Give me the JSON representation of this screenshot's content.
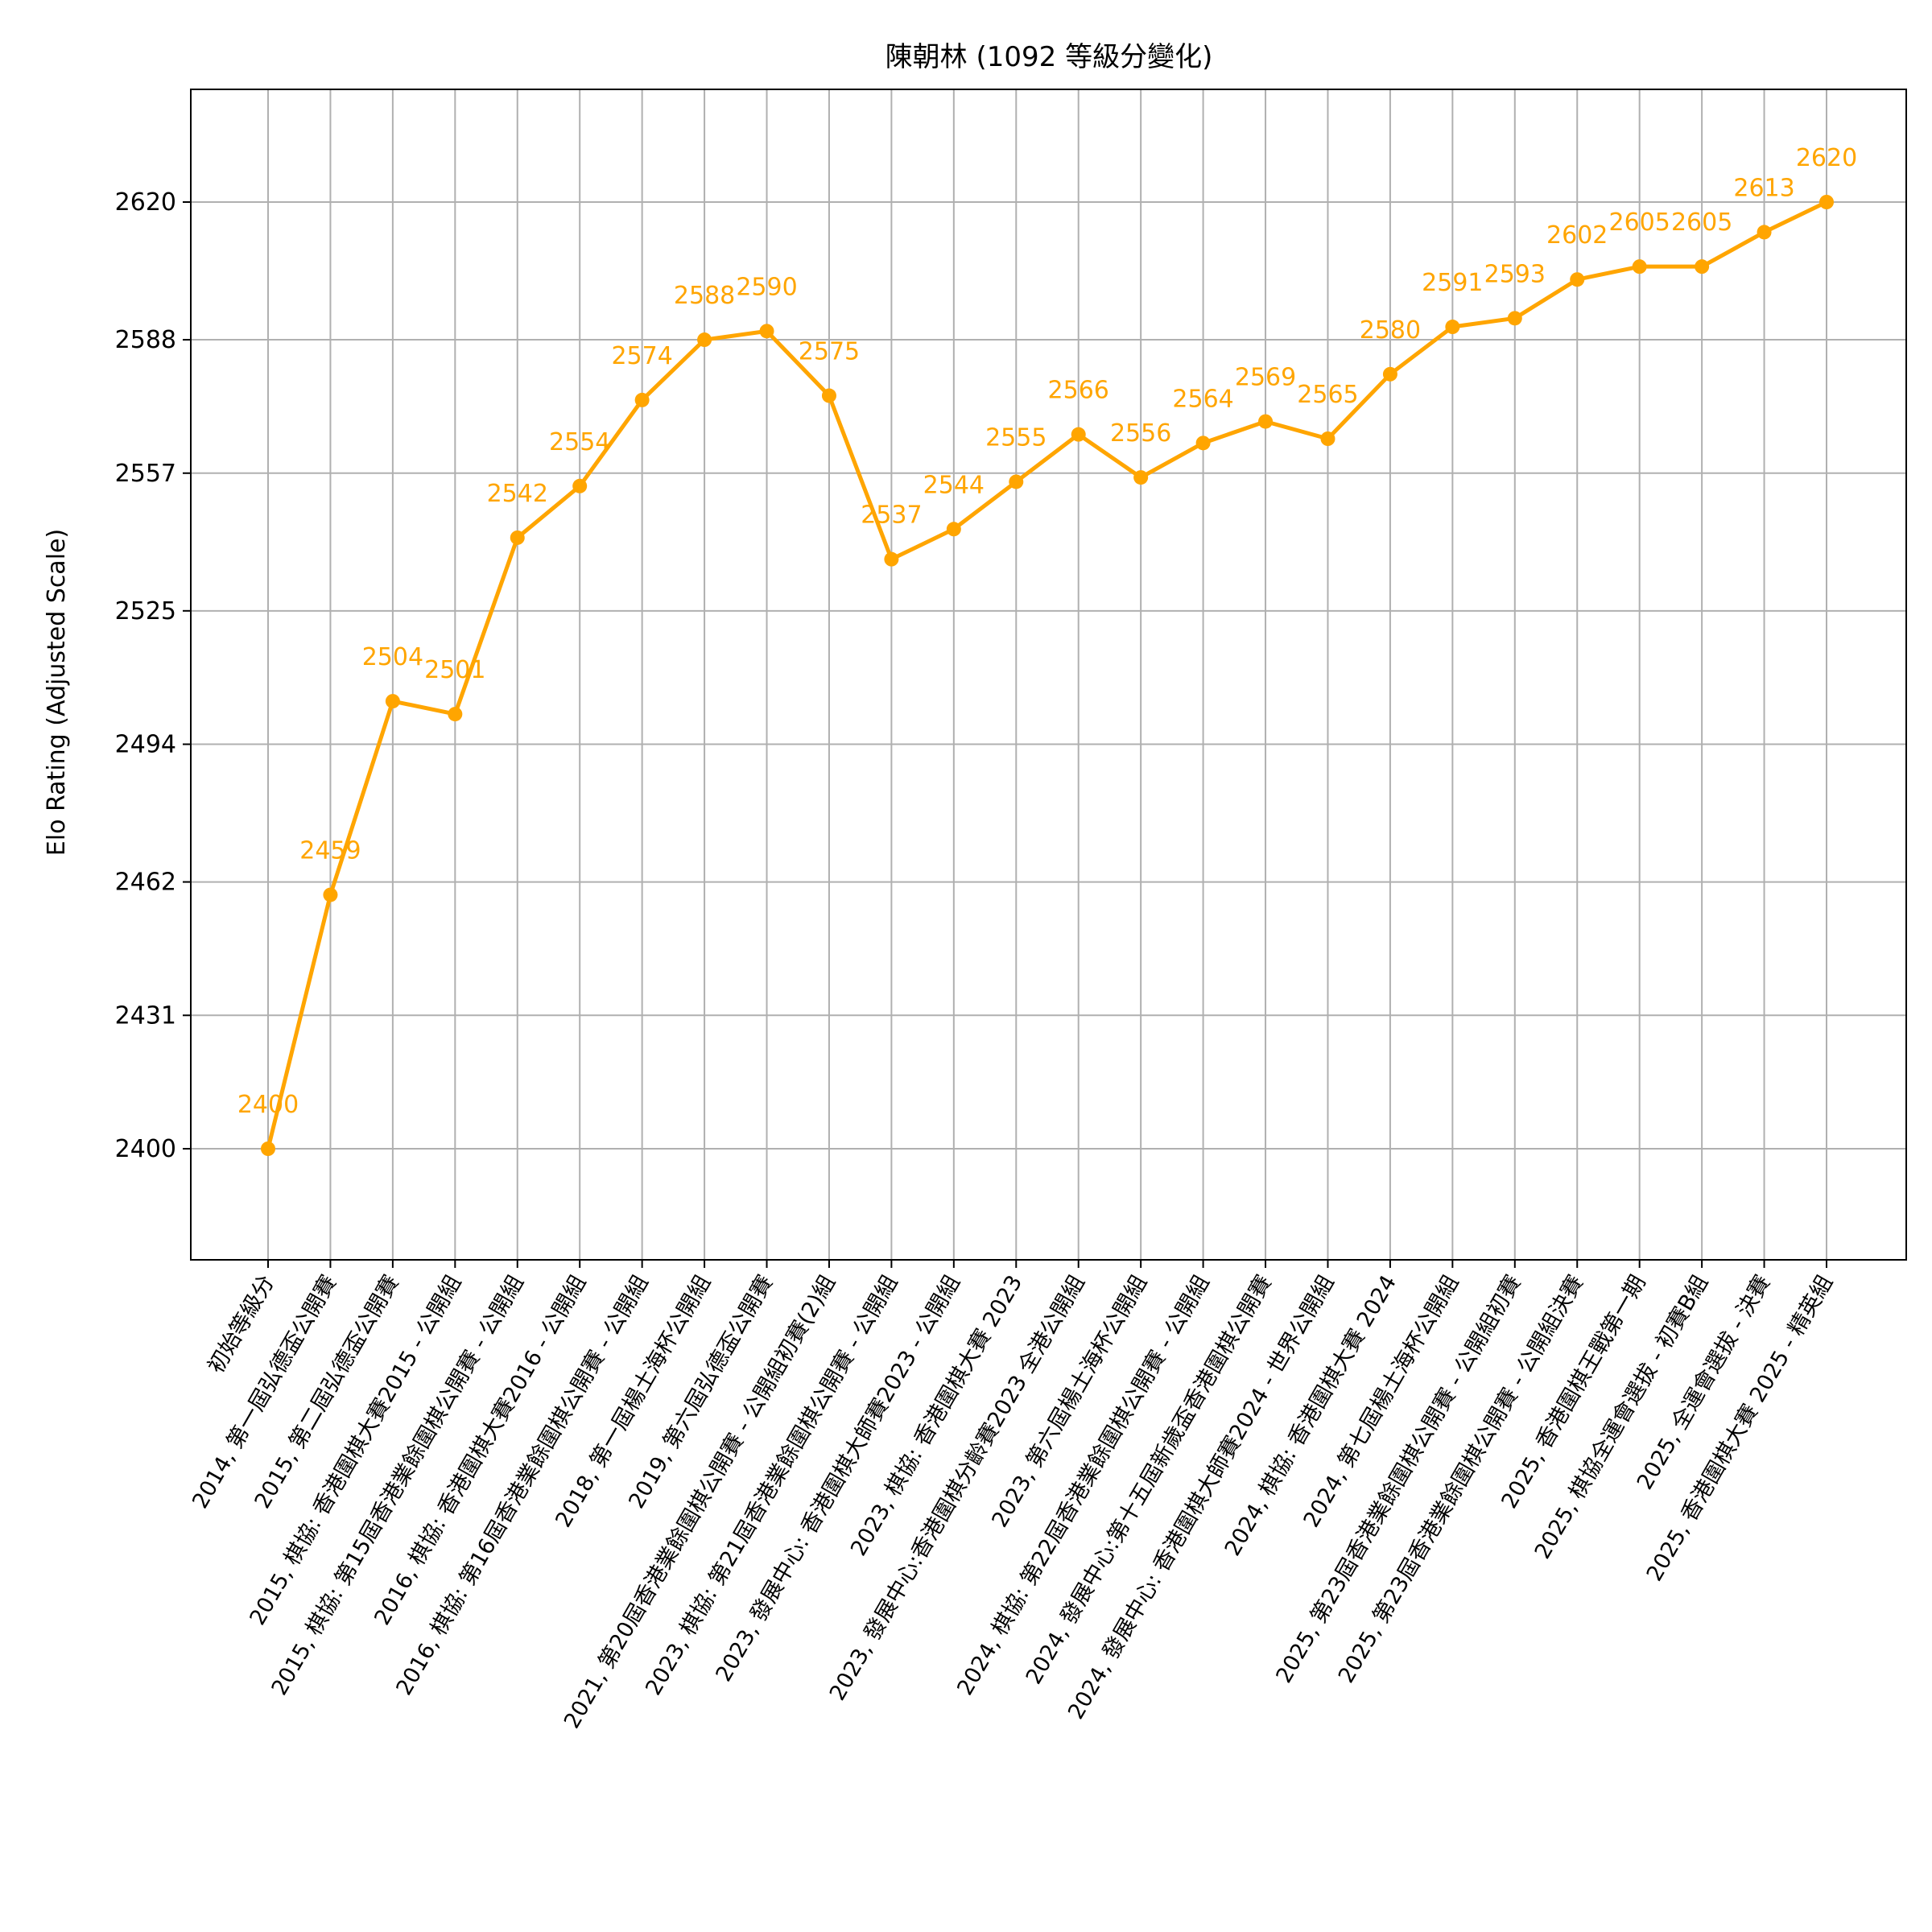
{
  "chart_data": {
    "type": "line",
    "title": "陳朝林 (1092 等級分變化)",
    "xlabel": "",
    "ylabel": "Elo Rating (Adjusted Scale)",
    "color": "#ffa500",
    "grid": true,
    "y_tick_labels": [
      "2400",
      "2431",
      "2462",
      "2494",
      "2525",
      "2557",
      "2588",
      "2620"
    ],
    "ylim": [
      2380,
      2648
    ],
    "categories": [
      "初始等級分",
      "2014, 第一屆弘德盃公開賽",
      "2015, 第二屆弘德盃公開賽",
      "2015, 棋協: 香港圍棋大賽2015 - 公開組",
      "2015, 棋協: 第15屆香港業餘圍棋公開賽 - 公開組",
      "2016, 棋協: 香港圍棋大賽2016 - 公開組",
      "2016, 棋協: 第16屆香港業餘圍棋公開賽 - 公開組",
      "2018, 第一屆楊土海杯公開組",
      "2019, 第六屆弘德盃公開賽",
      "2021, 第20屆香港業餘圍棋公開賽 - 公開組初賽(2)組",
      "2023, 棋協: 第21屆香港業餘圍棋公開賽 - 公開組",
      "2023, 發展中心: 香港圍棋大師賽2023 - 公開組",
      "2023, 棋協: 香港圍棋大賽 2023",
      "2023, 發展中心:香港圍棋分齡賽2023 全港公開組",
      "2023, 第六屆楊土海杯公開組",
      "2024, 棋協: 第22屆香港業餘圍棋公開賽 - 公開組",
      "2024, 發展中心:第十五屆新歲盃香港圍棋公開賽",
      "2024, 發展中心: 香港圍棋大師賽2024 - 世界公開組",
      "2024, 棋協: 香港圍棋大賽 2024",
      "2024, 第七屆楊土海杯公開組",
      "2025, 第23屆香港業餘圍棋公開賽 - 公開組初賽",
      "2025, 第23屆香港業餘圍棋公開賽 - 公開組決賽",
      "2025, 香港圍棋王戰第一期",
      "2025, 棋協全運會選拔 - 初賽B組",
      "2025, 全運會選拔 - 決賽",
      "2025, 香港圍棋大賽 2025 - 精英組"
    ],
    "values": [
      2400,
      2459,
      2504,
      2501,
      2542,
      2554,
      2574,
      2588,
      2590,
      2575,
      2537,
      2544,
      2555,
      2566,
      2556,
      2564,
      2569,
      2565,
      2580,
      2591,
      2593,
      2602,
      2605,
      2605,
      2613,
      2620
    ],
    "data_labels": [
      "2400",
      "2459",
      "2504",
      "2501",
      "2542",
      "2554",
      "2574",
      "2588",
      "2590",
      "2575",
      "2537",
      "2544",
      "2555",
      "2566",
      "2556",
      "2564",
      "2569",
      "2565",
      "2580",
      "2591",
      "2593",
      "2602",
      "2605",
      "2605",
      "2613",
      "2620"
    ]
  }
}
